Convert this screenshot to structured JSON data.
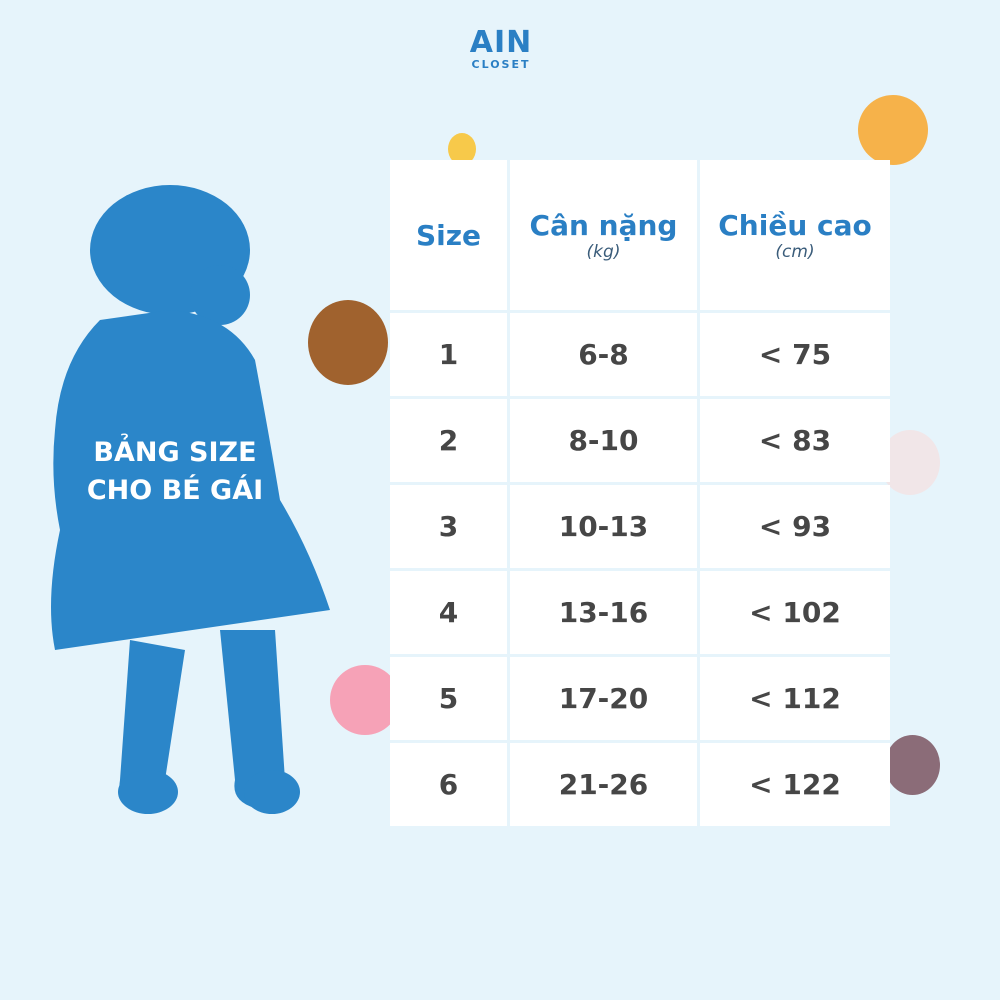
{
  "logo": {
    "line1": "AIN",
    "line2": "CLOSET"
  },
  "title": {
    "line1": "BẢNG SIZE",
    "line2": "CHO BÉ GÁI"
  },
  "colors": {
    "background": "#e6f4fb",
    "accent": "#2a7fc4",
    "silhouette": "#2b86c9",
    "text": "#464646"
  },
  "table": {
    "headers": [
      {
        "label": "Size",
        "unit": ""
      },
      {
        "label": "Cân nặng",
        "unit": "(kg)"
      },
      {
        "label": "Chiều cao",
        "unit": "(cm)"
      }
    ],
    "rows": [
      [
        "1",
        "6-8",
        "< 75"
      ],
      [
        "2",
        "8-10",
        "< 83"
      ],
      [
        "3",
        "10-13",
        "< 93"
      ],
      [
        "4",
        "13-16",
        "< 102"
      ],
      [
        "5",
        "17-20",
        "< 112"
      ],
      [
        "6",
        "21-26",
        "< 122"
      ]
    ]
  },
  "decorations": [
    "chick-icon",
    "cat-icon",
    "monkey-icon",
    "rabbit-icon",
    "pig-icon",
    "mouse-icon"
  ]
}
